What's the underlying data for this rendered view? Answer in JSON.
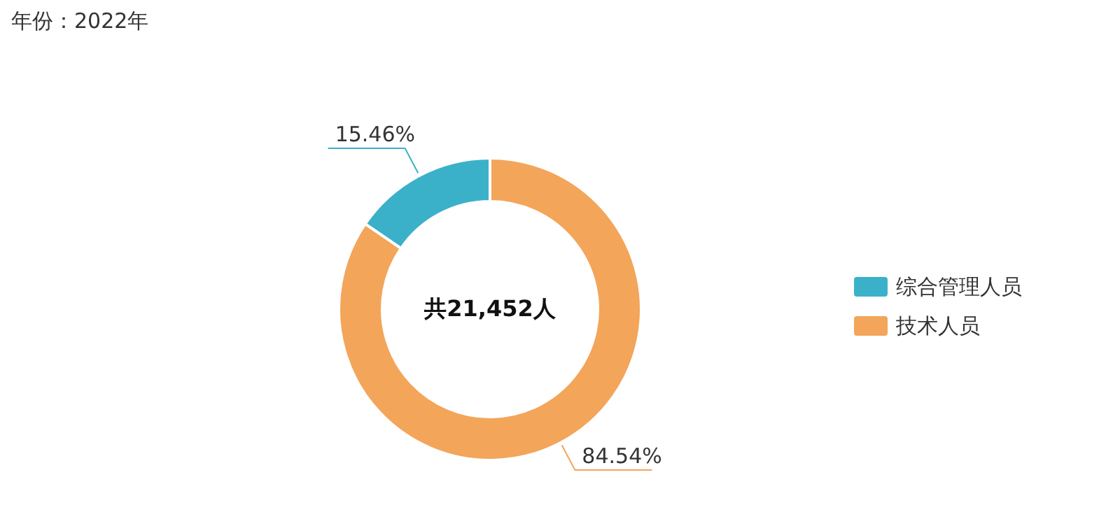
{
  "chart_data": {
    "type": "donut",
    "title": "年份：2022年",
    "categories": [
      "综合管理人员",
      "技术人员"
    ],
    "values": [
      15.46,
      84.54
    ],
    "colors": [
      "#3bb1c9",
      "#f3a55a"
    ],
    "value_labels": [
      "15.46%",
      "84.54%"
    ],
    "annotations": [
      "共21,452人"
    ],
    "legend": "right"
  }
}
